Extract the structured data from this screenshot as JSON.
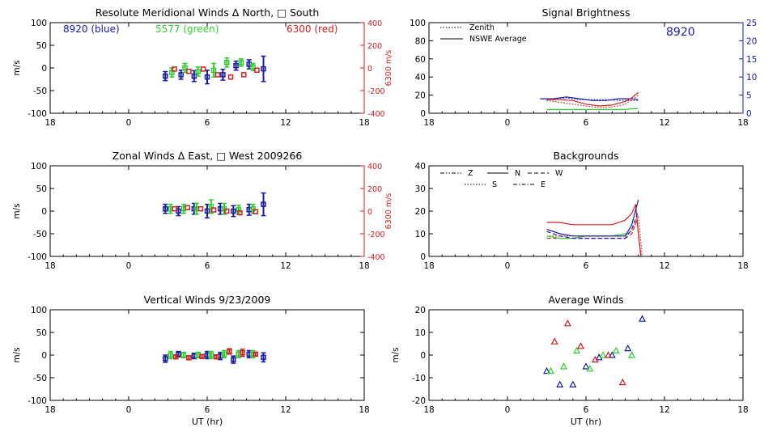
{
  "chart_data": [
    {
      "type": "scatter",
      "title": "Resolute Meridional Winds Δ North, □ South",
      "xlabel": "",
      "ylabel": "m/s",
      "xticks": [
        "18",
        "0",
        "6",
        "12",
        "18"
      ],
      "yticks": [
        "100",
        "50",
        "0",
        "-50",
        "-100"
      ],
      "xlim": [
        -6,
        18
      ],
      "ylim": [
        -100,
        100
      ],
      "y2label": "6300 m/s",
      "y2ticks": [
        "400",
        "200",
        "0",
        "-200",
        "-400"
      ],
      "y2lim": [
        -400,
        400
      ],
      "annotations": [
        {
          "text": "8920 (blue)",
          "color": "#1a1aa8"
        },
        {
          "text": "5577 (green)",
          "color": "#33cc33"
        },
        {
          "text": "6300 (red)",
          "color": "#cc2222"
        }
      ],
      "series": [
        {
          "color": "#1a1aa8",
          "axis": "left",
          "points": [
            {
              "x": 2.8,
              "y": -18,
              "err": 10
            },
            {
              "x": 4.0,
              "y": -15,
              "err": 10
            },
            {
              "x": 5.0,
              "y": -18,
              "err": 12
            },
            {
              "x": 6.0,
              "y": -20,
              "err": 15
            },
            {
              "x": 7.2,
              "y": -15,
              "err": 12
            },
            {
              "x": 8.2,
              "y": 5,
              "err": 10
            },
            {
              "x": 9.2,
              "y": 8,
              "err": 10
            },
            {
              "x": 10.3,
              "y": -2,
              "err": 28
            }
          ]
        },
        {
          "color": "#33cc33",
          "axis": "left",
          "points": [
            {
              "x": 3.3,
              "y": -10,
              "err": 10
            },
            {
              "x": 4.3,
              "y": 0,
              "err": 10
            },
            {
              "x": 5.3,
              "y": -8,
              "err": 10
            },
            {
              "x": 6.5,
              "y": -5,
              "err": 15
            },
            {
              "x": 7.5,
              "y": 12,
              "err": 10
            },
            {
              "x": 8.6,
              "y": 12,
              "err": 8
            },
            {
              "x": 9.5,
              "y": 2,
              "err": 8
            }
          ]
        },
        {
          "color": "#cc2222",
          "axis": "right",
          "points": [
            {
              "x": 3.5,
              "y": -10
            },
            {
              "x": 4.6,
              "y": -30
            },
            {
              "x": 5.7,
              "y": -10
            },
            {
              "x": 6.8,
              "y": -60
            },
            {
              "x": 7.8,
              "y": -80
            },
            {
              "x": 8.8,
              "y": -60
            },
            {
              "x": 9.8,
              "y": -20
            }
          ]
        }
      ]
    },
    {
      "type": "line",
      "title": "Signal Brightness",
      "xlabel": "",
      "ylabel": "",
      "xticks": [
        "18",
        "0",
        "6",
        "12",
        "18"
      ],
      "yticks": [
        "100",
        "80",
        "60",
        "40",
        "20",
        "0"
      ],
      "xlim": [
        -6,
        18
      ],
      "ylim": [
        0,
        100
      ],
      "y2ticks": [
        "25",
        "20",
        "15",
        "10",
        "5",
        "0"
      ],
      "y2lim": [
        0,
        25
      ],
      "annotation": "8920",
      "legend": [
        {
          "label": "Zenith",
          "style": "dotted"
        },
        {
          "label": "NSWE Average",
          "style": "solid"
        }
      ],
      "series": [
        {
          "color": "#1a1aa8",
          "style": "solid",
          "x": [
            2.5,
            3.5,
            4.5,
            5.5,
            6.5,
            7.5,
            8.5,
            9.5,
            10.0
          ],
          "y": [
            16,
            16,
            18,
            16,
            14,
            14,
            16,
            16,
            15
          ]
        },
        {
          "color": "#1a1aa8",
          "style": "dotted",
          "x": [
            2.5,
            3.5,
            4.5,
            5.5,
            6.5,
            7.5,
            8.5,
            9.5,
            10.0
          ],
          "y": [
            16,
            16,
            17,
            15,
            15,
            15,
            14,
            14,
            14
          ]
        },
        {
          "color": "#cc2222",
          "style": "solid",
          "x": [
            3.0,
            4.0,
            5.0,
            6.0,
            7.0,
            8.0,
            9.0,
            9.5,
            10.0
          ],
          "y": [
            15,
            15,
            14,
            10,
            8,
            9,
            13,
            17,
            23
          ]
        },
        {
          "color": "#cc2222",
          "style": "dotted",
          "x": [
            3.0,
            4.0,
            5.0,
            6.0,
            7.0,
            8.0,
            9.0,
            9.5,
            10.0
          ],
          "y": [
            14,
            12,
            10,
            8,
            6,
            7,
            10,
            15,
            20
          ]
        },
        {
          "color": "#33cc33",
          "style": "solid",
          "x": [
            3.0,
            4.0,
            5.0,
            6.0,
            7.0,
            8.0,
            9.0,
            9.5,
            10.0
          ],
          "y": [
            4,
            4,
            4,
            4,
            4,
            4,
            4,
            5,
            5
          ]
        }
      ]
    },
    {
      "type": "scatter",
      "title": "Zonal Winds Δ East, □ West 2009266",
      "xlabel": "",
      "ylabel": "m/s",
      "xticks": [
        "18",
        "0",
        "6",
        "12",
        "18"
      ],
      "yticks": [
        "100",
        "50",
        "0",
        "-50",
        "-100"
      ],
      "xlim": [
        -6,
        18
      ],
      "ylim": [
        -100,
        100
      ],
      "y2label": "6300 m/s",
      "y2ticks": [
        "400",
        "200",
        "0",
        "-200",
        "-400"
      ],
      "y2lim": [
        -400,
        400
      ],
      "series": [
        {
          "color": "#1a1aa8",
          "axis": "left",
          "points": [
            {
              "x": 2.8,
              "y": 5,
              "err": 10
            },
            {
              "x": 3.8,
              "y": 0,
              "err": 10
            },
            {
              "x": 5.0,
              "y": 5,
              "err": 12
            },
            {
              "x": 6.0,
              "y": 0,
              "err": 15
            },
            {
              "x": 7.0,
              "y": 5,
              "err": 12
            },
            {
              "x": 8.0,
              "y": 0,
              "err": 12
            },
            {
              "x": 9.2,
              "y": 3,
              "err": 12
            },
            {
              "x": 10.3,
              "y": 15,
              "err": 25
            }
          ]
        },
        {
          "color": "#33cc33",
          "axis": "left",
          "points": [
            {
              "x": 3.2,
              "y": 5,
              "err": 10
            },
            {
              "x": 4.2,
              "y": 5,
              "err": 10
            },
            {
              "x": 5.2,
              "y": 5,
              "err": 12
            },
            {
              "x": 6.3,
              "y": 10,
              "err": 15
            },
            {
              "x": 7.3,
              "y": 5,
              "err": 12
            },
            {
              "x": 8.4,
              "y": 3,
              "err": 10
            },
            {
              "x": 9.5,
              "y": 5,
              "err": 10
            }
          ]
        },
        {
          "color": "#cc2222",
          "axis": "right",
          "points": [
            {
              "x": 3.5,
              "y": 20
            },
            {
              "x": 4.5,
              "y": 30
            },
            {
              "x": 5.5,
              "y": 20
            },
            {
              "x": 6.5,
              "y": 10
            },
            {
              "x": 7.5,
              "y": 0
            },
            {
              "x": 8.5,
              "y": -15
            },
            {
              "x": 9.7,
              "y": -5
            }
          ]
        }
      ]
    },
    {
      "type": "line",
      "title": "Backgrounds",
      "xlabel": "",
      "ylabel": "",
      "xticks": [
        "18",
        "0",
        "6",
        "12",
        "18"
      ],
      "yticks": [
        "40",
        "30",
        "20",
        "10",
        "0"
      ],
      "xlim": [
        -6,
        18
      ],
      "ylim": [
        0,
        40
      ],
      "legend": [
        {
          "label": "Z",
          "style": "dashdotdot"
        },
        {
          "label": "N",
          "style": "solid"
        },
        {
          "label": "W",
          "style": "dashed"
        },
        {
          "label": "S",
          "style": "dotted"
        },
        {
          "label": "E",
          "style": "dashdot"
        }
      ],
      "series": [
        {
          "color": "#cc2222",
          "style": "solid",
          "x": [
            3,
            4,
            5,
            6,
            7,
            8,
            9,
            9.5,
            9.8,
            10.0,
            10.2
          ],
          "y": [
            15,
            15,
            14,
            14,
            14,
            14,
            16,
            19,
            23,
            10,
            0
          ]
        },
        {
          "color": "#cc2222",
          "style": "dashed",
          "x": [
            3,
            4,
            5,
            6,
            7,
            8,
            9,
            9.5,
            9.9,
            10.2
          ],
          "y": [
            8,
            8,
            8,
            8,
            8,
            8,
            8,
            10,
            16,
            0
          ]
        },
        {
          "color": "#cc2222",
          "style": "dotted",
          "x": [
            3,
            4,
            5,
            6,
            7,
            8,
            9,
            9.6,
            10.0,
            10.3
          ],
          "y": [
            9,
            9,
            9,
            9,
            9,
            9,
            9,
            12,
            18,
            0
          ]
        },
        {
          "color": "#33cc33",
          "style": "solid",
          "x": [
            3,
            4,
            5,
            6,
            7,
            8,
            9,
            9.3
          ],
          "y": [
            9,
            8,
            8,
            9,
            9,
            9,
            10,
            10
          ]
        },
        {
          "color": "#1a1aa8",
          "style": "solid",
          "x": [
            3,
            4,
            5,
            6,
            7,
            8,
            9,
            9.5,
            10.0
          ],
          "y": [
            12,
            10,
            9,
            9,
            9,
            9,
            9,
            14,
            25
          ]
        },
        {
          "color": "#1a1aa8",
          "style": "dashed",
          "x": [
            3,
            4,
            5,
            6,
            7,
            8,
            9,
            9.5,
            10.0
          ],
          "y": [
            11,
            9,
            8,
            8,
            8,
            8,
            8,
            12,
            20
          ]
        }
      ]
    },
    {
      "type": "scatter",
      "title": "Vertical Winds 9/23/2009",
      "xlabel": "UT (hr)",
      "ylabel": "m/s",
      "xticks": [
        "18",
        "0",
        "6",
        "12",
        "18"
      ],
      "yticks": [
        "100",
        "50",
        "0",
        "-50",
        "-100"
      ],
      "xlim": [
        -6,
        18
      ],
      "ylim": [
        -100,
        100
      ],
      "series": [
        {
          "color": "#1a1aa8",
          "axis": "left",
          "points": [
            {
              "x": 2.8,
              "y": -8,
              "err": 8
            },
            {
              "x": 3.8,
              "y": 2,
              "err": 6
            },
            {
              "x": 5.0,
              "y": -2,
              "err": 6
            },
            {
              "x": 6.0,
              "y": 0,
              "err": 8
            },
            {
              "x": 7.0,
              "y": -2,
              "err": 8
            },
            {
              "x": 8.0,
              "y": -10,
              "err": 8
            },
            {
              "x": 9.2,
              "y": 2,
              "err": 8
            },
            {
              "x": 10.3,
              "y": -5,
              "err": 10
            }
          ]
        },
        {
          "color": "#33cc33",
          "axis": "left",
          "points": [
            {
              "x": 3.2,
              "y": 0,
              "err": 8
            },
            {
              "x": 4.2,
              "y": 0,
              "err": 6
            },
            {
              "x": 5.3,
              "y": 0,
              "err": 6
            },
            {
              "x": 6.3,
              "y": 0,
              "err": 8
            },
            {
              "x": 7.3,
              "y": 2,
              "err": 8
            },
            {
              "x": 8.4,
              "y": 2,
              "err": 8
            },
            {
              "x": 9.5,
              "y": 2,
              "err": 8
            }
          ]
        },
        {
          "color": "#cc2222",
          "axis": "left",
          "points": [
            {
              "x": 3.6,
              "y": -4,
              "err": 4
            },
            {
              "x": 4.6,
              "y": -6,
              "err": 4
            },
            {
              "x": 5.6,
              "y": -3,
              "err": 4
            },
            {
              "x": 6.7,
              "y": -4,
              "err": 4
            },
            {
              "x": 7.7,
              "y": 8,
              "err": 6
            },
            {
              "x": 8.7,
              "y": 5,
              "err": 8
            },
            {
              "x": 9.7,
              "y": 2,
              "err": 4
            }
          ]
        }
      ]
    },
    {
      "type": "scatter",
      "title": "Average Winds",
      "xlabel": "UT (hr)",
      "ylabel": "m/s",
      "xticks": [
        "18",
        "0",
        "6",
        "12",
        "18"
      ],
      "yticks": [
        "20",
        "10",
        "0",
        "-10",
        "-20"
      ],
      "xlim": [
        -6,
        18
      ],
      "ylim": [
        -20,
        20
      ],
      "series": [
        {
          "color": "#1a1aa8",
          "marker": "triangle",
          "x": [
            3.0,
            4.0,
            5.0,
            6.0,
            7.0,
            8.0,
            9.2,
            10.3
          ],
          "y": [
            -7,
            -13,
            -13,
            -5,
            -1,
            0,
            3,
            16
          ]
        },
        {
          "color": "#33cc33",
          "marker": "triangle",
          "x": [
            3.3,
            4.3,
            5.3,
            6.3,
            7.3,
            8.3,
            9.5
          ],
          "y": [
            -7,
            -5,
            2,
            -6,
            0,
            2,
            0
          ]
        },
        {
          "color": "#cc2222",
          "marker": "triangle",
          "x": [
            3.6,
            4.6,
            5.6,
            6.7,
            7.7,
            8.8
          ],
          "y": [
            6,
            14,
            4,
            -2,
            0,
            -12
          ]
        }
      ]
    }
  ]
}
